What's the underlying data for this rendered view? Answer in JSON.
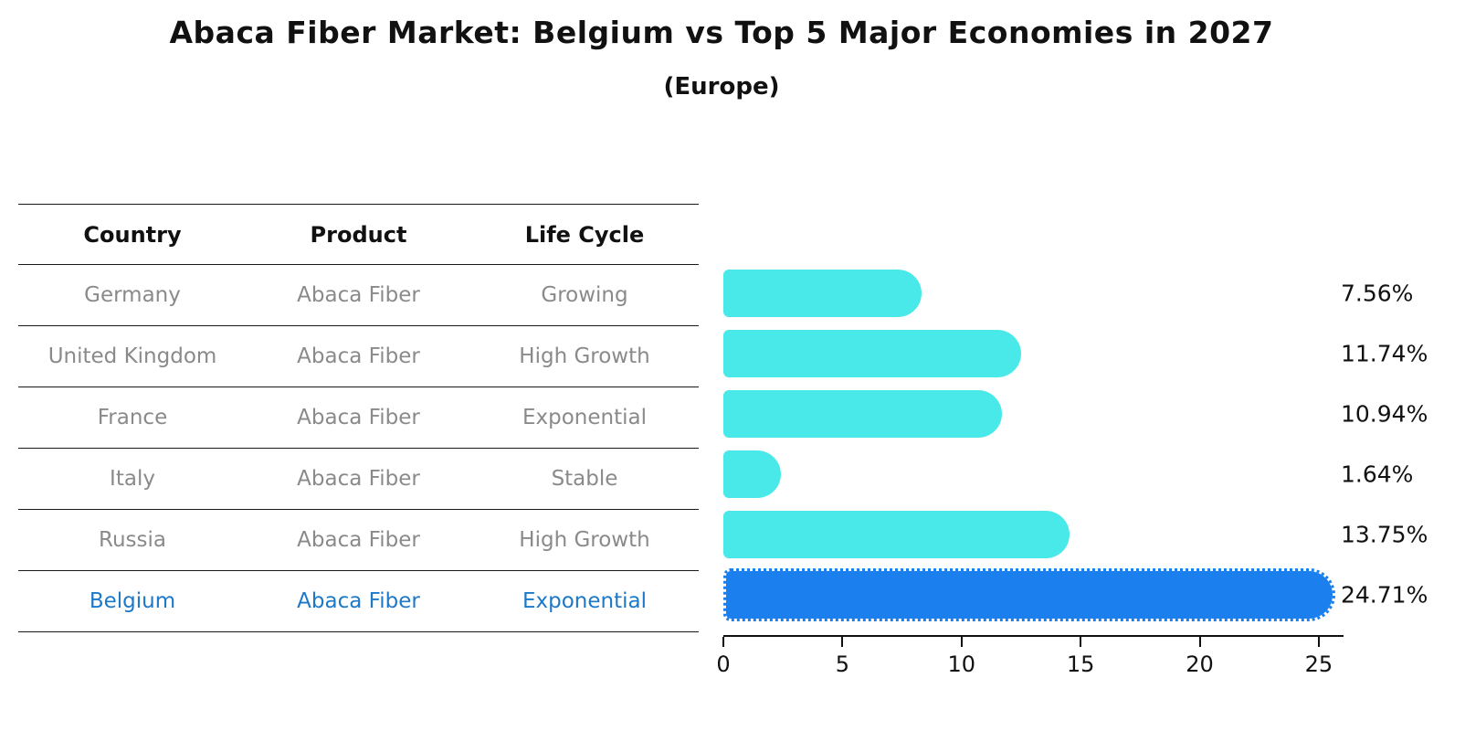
{
  "title": "Abaca Fiber Market: Belgium vs Top 5 Major Economies in 2027",
  "subtitle": "(Europe)",
  "table": {
    "headers": [
      "Country",
      "Product",
      "Life Cycle"
    ],
    "rows": [
      {
        "country": "Germany",
        "product": "Abaca Fiber",
        "life_cycle": "Growing",
        "highlight": false
      },
      {
        "country": "United Kingdom",
        "product": "Abaca Fiber",
        "life_cycle": "High Growth",
        "highlight": false
      },
      {
        "country": "France",
        "product": "Abaca Fiber",
        "life_cycle": "Exponential",
        "highlight": false
      },
      {
        "country": "Italy",
        "product": "Abaca Fiber",
        "life_cycle": "Stable",
        "highlight": false
      },
      {
        "country": "Russia",
        "product": "Abaca Fiber",
        "life_cycle": "High Growth",
        "highlight": false
      },
      {
        "country": "Belgium",
        "product": "Abaca Fiber",
        "life_cycle": "Exponential",
        "highlight": true
      }
    ]
  },
  "chart_data": {
    "type": "bar",
    "orientation": "horizontal",
    "categories": [
      "Germany",
      "United Kingdom",
      "France",
      "Italy",
      "Russia",
      "Belgium"
    ],
    "values": [
      7.56,
      11.74,
      10.94,
      1.64,
      13.75,
      24.71
    ],
    "value_labels": [
      "7.56%",
      "11.74%",
      "10.94%",
      "1.64%",
      "13.75%",
      "24.71%"
    ],
    "x_ticks": [
      "0",
      "5",
      "10",
      "15",
      "20",
      "25"
    ],
    "x_tick_values": [
      0,
      5,
      10,
      15,
      20,
      25
    ],
    "xlim": [
      0,
      26
    ],
    "grid": false,
    "legend": "none",
    "highlight_index": 5,
    "title": "Abaca Fiber Market: Belgium vs Top 5 Major Economies in 2027",
    "subtitle": "(Europe)"
  },
  "colors": {
    "bar": "#4ae9e9",
    "highlight": "#1b80ee",
    "belgium-text": "#1e78c8"
  }
}
